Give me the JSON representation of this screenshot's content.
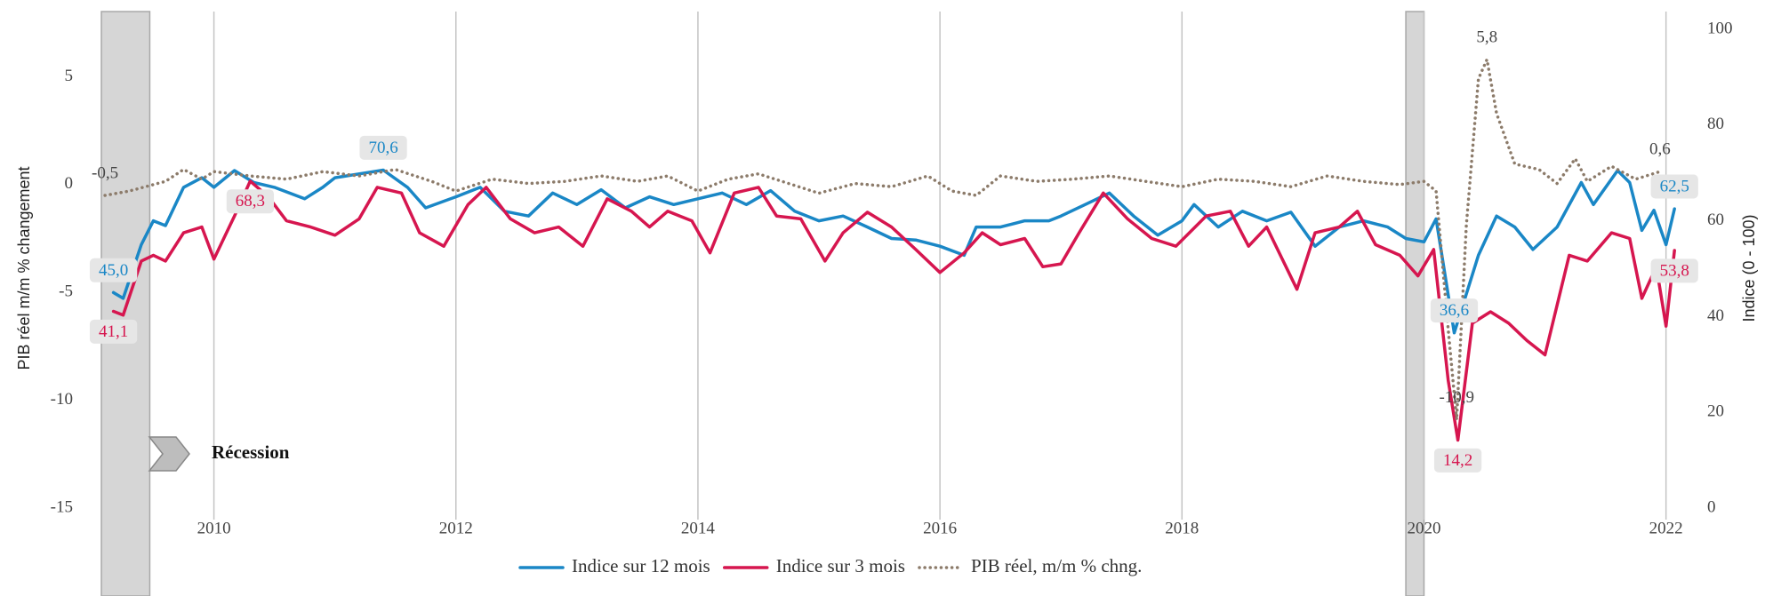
{
  "chart_data": {
    "type": "line",
    "xlim": [
      2009.07,
      2022.12
    ],
    "xticks": [
      2010,
      2012,
      2014,
      2016,
      2018,
      2020,
      2022
    ],
    "ylim": [
      -15,
      7.2
    ],
    "yticks": [
      -15,
      -10,
      -5,
      0,
      5
    ],
    "y2lim": [
      0,
      100
    ],
    "y2ticks": [
      0,
      20,
      40,
      60,
      80,
      100
    ],
    "ylabel": "PIB réel m/m % changement",
    "y2label": "Indice (0 - 100)",
    "grid": true,
    "legend": "bottom",
    "recession_label": "Récession",
    "recessions": [
      [
        2009.07,
        2009.47
      ],
      [
        2019.85,
        2020.0
      ]
    ],
    "series": [
      {
        "name": "Indice sur 12 mois",
        "color": "#1a87c6",
        "axis": "y2",
        "x": [
          2009.17,
          2009.25,
          2009.4,
          2009.5,
          2009.6,
          2009.75,
          2009.9,
          2010.0,
          2010.17,
          2010.33,
          2010.5,
          2010.75,
          2010.9,
          2011.0,
          2011.25,
          2011.4,
          2011.6,
          2011.75,
          2012.0,
          2012.2,
          2012.4,
          2012.6,
          2012.8,
          2013.0,
          2013.2,
          2013.4,
          2013.6,
          2013.8,
          2014.0,
          2014.2,
          2014.4,
          2014.6,
          2014.8,
          2015.0,
          2015.2,
          2015.4,
          2015.6,
          2015.8,
          2016.0,
          2016.2,
          2016.3,
          2016.5,
          2016.7,
          2016.9,
          2017.0,
          2017.2,
          2017.4,
          2017.6,
          2017.8,
          2018.0,
          2018.1,
          2018.3,
          2018.5,
          2018.7,
          2018.9,
          2019.1,
          2019.3,
          2019.5,
          2019.7,
          2019.85,
          2020.0,
          2020.1,
          2020.25,
          2020.45,
          2020.6,
          2020.75,
          2020.9,
          2021.1,
          2021.3,
          2021.4,
          2021.6,
          2021.7,
          2021.8,
          2021.9,
          2022.0,
          2022.07
        ],
        "values": [
          45.0,
          43.8,
          55,
          60,
          59,
          67,
          69,
          67,
          70.5,
          68,
          67,
          64.6,
          67,
          69,
          70,
          70.6,
          67,
          62.7,
          65,
          67,
          62,
          61,
          65.8,
          63.4,
          66.5,
          62.7,
          65,
          63.4,
          64.6,
          65.8,
          63.4,
          66.3,
          62,
          60,
          61,
          58.7,
          56.3,
          56,
          54.7,
          52.8,
          58.7,
          58.7,
          60,
          60,
          61,
          63.4,
          65.8,
          61,
          57,
          60,
          63.4,
          58.7,
          62,
          60,
          61.8,
          54.7,
          58.7,
          60,
          58.7,
          56.3,
          55.6,
          60.4,
          36.6,
          52.8,
          61,
          58.7,
          54,
          58.7,
          68,
          63.4,
          70.5,
          68,
          58,
          62.2,
          55,
          62.5
        ],
        "value_labels": [
          "45,0",
          null,
          null,
          null,
          null,
          null,
          null,
          null,
          null,
          null,
          null,
          null,
          null,
          null,
          null,
          "70,6",
          null,
          null,
          null,
          null,
          null,
          null,
          null,
          null,
          null,
          null,
          null,
          null,
          null,
          null,
          null,
          null,
          null,
          null,
          null,
          null,
          null,
          null,
          null,
          null,
          null,
          null,
          null,
          null,
          null,
          null,
          null,
          null,
          null,
          null,
          null,
          null,
          null,
          null,
          null,
          null,
          null,
          null,
          null,
          null,
          null,
          null,
          "36,6",
          null,
          null,
          null,
          null,
          null,
          null,
          null,
          null,
          null,
          null,
          null,
          null,
          "62,5"
        ]
      },
      {
        "name": "Indice sur 3 mois",
        "color": "#d6164f",
        "axis": "y2",
        "x": [
          2009.17,
          2009.25,
          2009.4,
          2009.5,
          2009.6,
          2009.75,
          2009.9,
          2010.0,
          2010.17,
          2010.3,
          2010.45,
          2010.6,
          2010.8,
          2011.0,
          2011.2,
          2011.35,
          2011.55,
          2011.7,
          2011.9,
          2012.1,
          2012.25,
          2012.45,
          2012.65,
          2012.85,
          2013.05,
          2013.25,
          2013.45,
          2013.6,
          2013.75,
          2013.95,
          2014.1,
          2014.3,
          2014.5,
          2014.65,
          2014.85,
          2015.05,
          2015.2,
          2015.4,
          2015.6,
          2015.8,
          2016.0,
          2016.2,
          2016.35,
          2016.5,
          2016.7,
          2016.85,
          2017.0,
          2017.15,
          2017.35,
          2017.55,
          2017.75,
          2017.95,
          2018.2,
          2018.4,
          2018.55,
          2018.7,
          2018.95,
          2019.1,
          2019.3,
          2019.45,
          2019.6,
          2019.8,
          2019.95,
          2020.08,
          2020.2,
          2020.28,
          2020.4,
          2020.55,
          2020.7,
          2020.85,
          2021.0,
          2021.2,
          2021.35,
          2021.55,
          2021.7,
          2021.8,
          2021.92,
          2022.0,
          2022.07
        ],
        "values": [
          41.1,
          40.3,
          51.6,
          52.8,
          51.6,
          57.5,
          58.7,
          52,
          61,
          68.3,
          65,
          60,
          58.7,
          57,
          60.4,
          67,
          65.8,
          57.5,
          54.7,
          63.4,
          67,
          60.4,
          57.5,
          58.7,
          54.7,
          64.6,
          62,
          58.7,
          62,
          60,
          53.3,
          65.8,
          67,
          61,
          60.4,
          51.6,
          57.5,
          61.8,
          58.7,
          54,
          49.2,
          53.3,
          57.5,
          55,
          56.3,
          50.4,
          51,
          57.5,
          65.8,
          60.4,
          56.3,
          54.7,
          61,
          62,
          54.7,
          58.7,
          45.7,
          57.5,
          58.7,
          62,
          55,
          52.8,
          48.5,
          54,
          26.7,
          14.2,
          38.6,
          41,
          38.6,
          35,
          32,
          52.8,
          51.6,
          57.5,
          56.3,
          43.8,
          50.4,
          38,
          53.8
        ],
        "value_labels": [
          "41,1",
          null,
          null,
          null,
          null,
          null,
          null,
          null,
          null,
          "68,3",
          null,
          null,
          null,
          null,
          null,
          null,
          null,
          null,
          null,
          null,
          null,
          null,
          null,
          null,
          null,
          null,
          null,
          null,
          null,
          null,
          null,
          null,
          null,
          null,
          null,
          null,
          null,
          null,
          null,
          null,
          null,
          null,
          null,
          null,
          null,
          null,
          null,
          null,
          null,
          null,
          null,
          null,
          null,
          null,
          null,
          null,
          null,
          null,
          null,
          null,
          null,
          null,
          null,
          null,
          null,
          "14,2",
          null,
          null,
          null,
          null,
          null,
          null,
          null,
          null,
          null,
          null,
          null,
          null,
          "53,8"
        ]
      },
      {
        "name": "PIB réel, m/m % chng.",
        "color": "#8c7b6a",
        "axis": "y",
        "dotted": true,
        "x": [
          2009.1,
          2009.3,
          2009.6,
          2009.75,
          2009.9,
          2010.0,
          2010.3,
          2010.6,
          2010.9,
          2011.2,
          2011.5,
          2011.8,
          2012.0,
          2012.3,
          2012.6,
          2012.9,
          2013.2,
          2013.5,
          2013.75,
          2014.0,
          2014.25,
          2014.5,
          2014.75,
          2015.0,
          2015.3,
          2015.6,
          2015.9,
          2016.1,
          2016.3,
          2016.5,
          2016.8,
          2017.1,
          2017.4,
          2017.7,
          2018.0,
          2018.3,
          2018.6,
          2018.9,
          2019.2,
          2019.5,
          2019.8,
          2020.0,
          2020.1,
          2020.2,
          2020.27,
          2020.35,
          2020.45,
          2020.52,
          2020.6,
          2020.75,
          2020.95,
          2021.1,
          2021.25,
          2021.35,
          2021.55,
          2021.75,
          2021.95
        ],
        "values": [
          -0.5,
          -0.3,
          0.15,
          0.7,
          0.25,
          0.6,
          0.4,
          0.25,
          0.6,
          0.4,
          0.7,
          0.15,
          -0.3,
          0.25,
          0.05,
          0.15,
          0.4,
          0.15,
          0.4,
          -0.3,
          0.25,
          0.5,
          0.05,
          -0.4,
          0.05,
          -0.1,
          0.4,
          -0.3,
          -0.5,
          0.4,
          0.15,
          0.25,
          0.4,
          0.15,
          -0.1,
          0.25,
          0.15,
          -0.1,
          0.4,
          0.15,
          0,
          0.15,
          -0.3,
          -6.7,
          -10.9,
          -1.9,
          4.9,
          5.8,
          3.3,
          0.95,
          0.7,
          0.05,
          1.2,
          0.15,
          0.85,
          0.25,
          0.6
        ],
        "value_labels": [
          "-0,5",
          null,
          null,
          null,
          null,
          null,
          null,
          null,
          null,
          null,
          null,
          null,
          null,
          null,
          null,
          null,
          null,
          null,
          null,
          null,
          null,
          null,
          null,
          null,
          null,
          null,
          null,
          null,
          null,
          null,
          null,
          null,
          null,
          null,
          null,
          null,
          null,
          null,
          null,
          null,
          null,
          null,
          null,
          null,
          "-10,9",
          null,
          null,
          "5,8",
          null,
          null,
          null,
          null,
          null,
          null,
          null,
          null,
          "0,6"
        ]
      }
    ]
  }
}
